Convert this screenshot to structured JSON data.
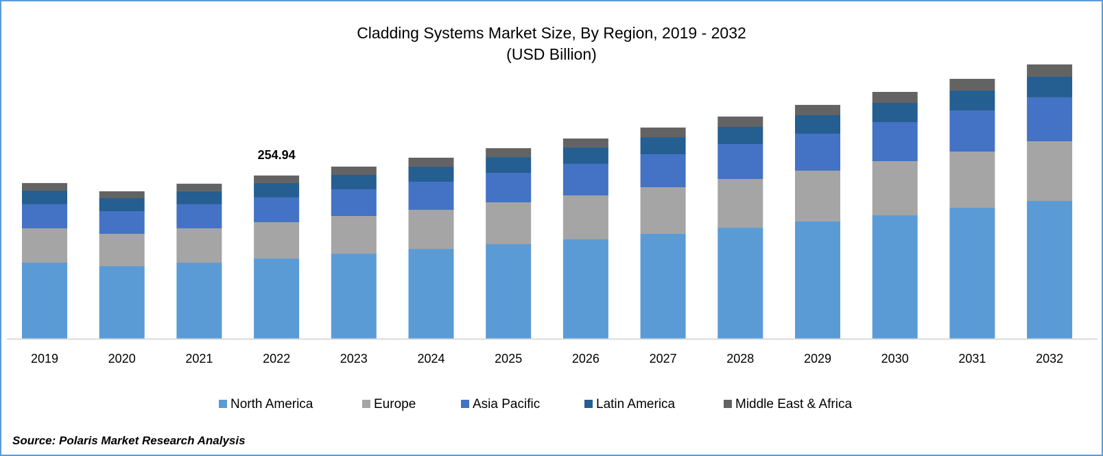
{
  "chart_data": {
    "type": "bar",
    "stacked": true,
    "title": "Cladding Systems Market Size, By Region, 2019 - 2032",
    "subtitle": "(USD Billion)",
    "xlabel": "",
    "ylabel": "",
    "categories": [
      "2019",
      "2020",
      "2021",
      "2022",
      "2023",
      "2024",
      "2025",
      "2026",
      "2027",
      "2028",
      "2029",
      "2030",
      "2031",
      "2032"
    ],
    "series": [
      {
        "name": "North America",
        "color": "#5b9bd5",
        "values": [
          118.9,
          113.5,
          118.9,
          125.3,
          132.8,
          140.3,
          147.8,
          155.3,
          163.9,
          173.5,
          183.2,
          192.8,
          204.6,
          215.3
        ]
      },
      {
        "name": "Europe",
        "color": "#a5a5a5",
        "values": [
          53.6,
          50.3,
          53.6,
          56.8,
          58.9,
          61.1,
          65.3,
          68.6,
          72.8,
          76.1,
          79.3,
          84.6,
          87.8,
          93.2
        ]
      },
      {
        "name": "Asia Pacific",
        "color": "#4472c4",
        "values": [
          37.5,
          35.4,
          37.5,
          38.6,
          41.8,
          43.9,
          46.1,
          49.3,
          51.4,
          54.6,
          57.8,
          61.1,
          64.3,
          68.6
        ]
      },
      {
        "name": "Latin America",
        "color": "#255e91",
        "values": [
          21.4,
          20.4,
          20.4,
          22.5,
          22.5,
          23.6,
          24.6,
          25.7,
          26.8,
          26.8,
          28.9,
          30.0,
          31.1,
          32.1
        ]
      },
      {
        "name": "Middle East & Africa",
        "color": "#636363",
        "values": [
          11.8,
          10.7,
          11.8,
          11.8,
          12.9,
          13.9,
          13.9,
          13.9,
          15.0,
          16.1,
          16.1,
          17.1,
          18.2,
          19.3
        ]
      }
    ],
    "annotations": [
      {
        "category": "2022",
        "text": "254.94"
      }
    ],
    "ylim": [
      0,
      420
    ],
    "grid": false,
    "legend_position": "bottom"
  },
  "source": "Source: Polaris Market Research Analysis"
}
